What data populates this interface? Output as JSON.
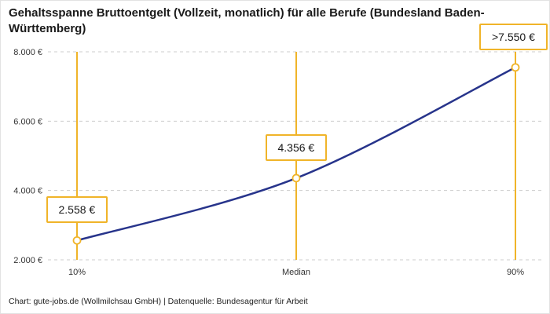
{
  "footer": "Chart: gute-jobs.de (Wollmilchsau GmbH) | Datenquelle: Bundesagentur für Arbeit",
  "colors": {
    "line": "#27348b",
    "accent": "#f0b429",
    "grid": "#cccccc",
    "title_text": "#1a1a1a",
    "tick_text": "#333333",
    "marker_fill": "#ffffff"
  },
  "chart_data": {
    "type": "line",
    "title": "Gehaltsspanne Bruttoentgelt (Vollzeit, monatlich) für alle Berufe (Bundesland Baden-Württemberg)",
    "categories": [
      "10%",
      "Median",
      "90%"
    ],
    "values": [
      2558,
      4356,
      7550
    ],
    "point_labels": [
      "2.558 €",
      "4.356 €",
      ">7.550 €"
    ],
    "ylim": [
      2000,
      8000
    ],
    "yticks": [
      2000,
      4000,
      6000,
      8000
    ],
    "ytick_labels": [
      "2.000 €",
      "4.000 €",
      "6.000 €",
      "8.000 €"
    ],
    "xlabel": "",
    "ylabel": "",
    "grid": "horizontal-dashed",
    "legend": "none"
  }
}
